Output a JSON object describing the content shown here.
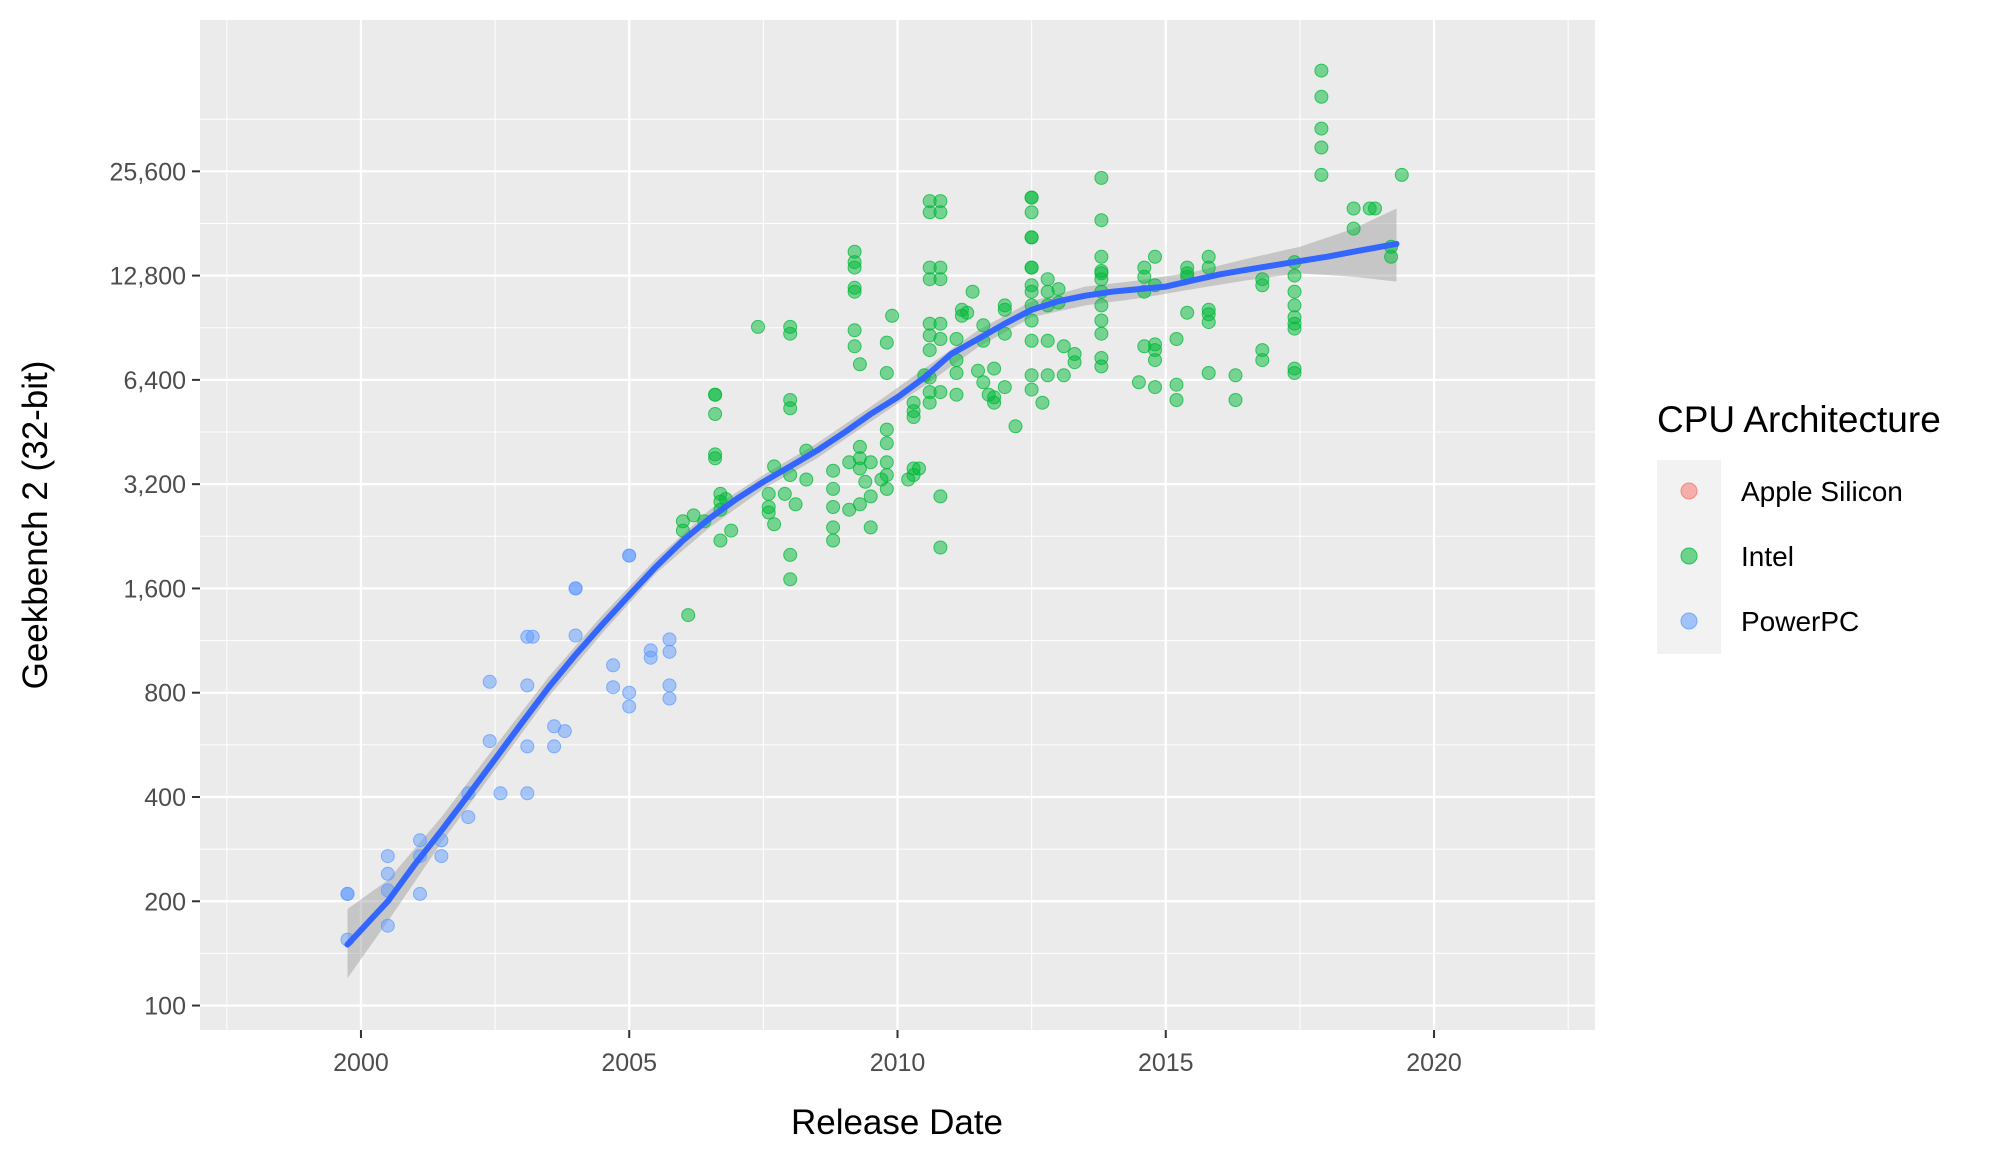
{
  "chart_data": {
    "type": "scatter",
    "title": "",
    "xlabel": "Release Date",
    "ylabel": "Geekbench 2 (32-bit)",
    "x_scale": "date",
    "y_scale": "log2",
    "xlim": [
      1997.0,
      2023.0
    ],
    "ylim": [
      85,
      70000
    ],
    "x_ticks": [
      2000,
      2005,
      2010,
      2015,
      2020
    ],
    "x_tick_labels": [
      "2000",
      "2005",
      "2010",
      "2015",
      "2020"
    ],
    "y_ticks": [
      100,
      200,
      400,
      800,
      1600,
      3200,
      6400,
      12800,
      25600
    ],
    "y_tick_labels": [
      "100",
      "200",
      "400",
      "800",
      "1,600",
      "3,200",
      "6,400",
      "12,800",
      "25,600"
    ],
    "grid": true,
    "legend": {
      "title": "CPU Architecture",
      "position": "right",
      "entries": [
        "Apple Silicon",
        "Intel",
        "PowerPC"
      ]
    },
    "colors": {
      "Apple Silicon": "#F8766D",
      "Intel": "#00BA38",
      "PowerPC": "#619CFF",
      "trend": "#3366FF",
      "ribbon": "#999999",
      "panel": "#EBEBEB",
      "grid": "#FFFFFF"
    },
    "series": [
      {
        "name": "Apple Silicon",
        "points": []
      },
      {
        "name": "PowerPC",
        "points": [
          [
            1999.75,
            210
          ],
          [
            1999.75,
            210
          ],
          [
            1999.75,
            155
          ],
          [
            2000.5,
            270
          ],
          [
            2000.5,
            240
          ],
          [
            2000.5,
            215
          ],
          [
            2000.5,
            170
          ],
          [
            2001.1,
            300
          ],
          [
            2001.1,
            270
          ],
          [
            2001.1,
            210
          ],
          [
            2001.5,
            300
          ],
          [
            2001.5,
            270
          ],
          [
            2002.0,
            410
          ],
          [
            2002.0,
            350
          ],
          [
            2002.4,
            580
          ],
          [
            2002.4,
            860
          ],
          [
            2002.6,
            410
          ],
          [
            2003.1,
            1160
          ],
          [
            2003.2,
            1160
          ],
          [
            2003.1,
            840
          ],
          [
            2003.1,
            560
          ],
          [
            2003.1,
            410
          ],
          [
            2003.6,
            640
          ],
          [
            2003.6,
            560
          ],
          [
            2003.8,
            620
          ],
          [
            2004.0,
            1600
          ],
          [
            2004.0,
            1600
          ],
          [
            2004.0,
            1170
          ],
          [
            2004.7,
            960
          ],
          [
            2004.7,
            830
          ],
          [
            2005.0,
            1990
          ],
          [
            2005.0,
            1990
          ],
          [
            2005.0,
            800
          ],
          [
            2005.0,
            730
          ],
          [
            2005.4,
            1060
          ],
          [
            2005.4,
            1010
          ],
          [
            2005.75,
            1140
          ],
          [
            2005.75,
            1050
          ],
          [
            2005.75,
            840
          ],
          [
            2005.75,
            770
          ]
        ]
      },
      {
        "name": "Intel",
        "points": [
          [
            2006.1,
            1340
          ],
          [
            2006.0,
            2500
          ],
          [
            2006.0,
            2350
          ],
          [
            2006.2,
            2600
          ],
          [
            2006.4,
            2500
          ],
          [
            2006.6,
            5800
          ],
          [
            2006.6,
            5800
          ],
          [
            2006.6,
            5100
          ],
          [
            2006.6,
            3900
          ],
          [
            2006.6,
            3800
          ],
          [
            2006.7,
            3000
          ],
          [
            2006.7,
            2850
          ],
          [
            2006.7,
            2700
          ],
          [
            2006.7,
            2200
          ],
          [
            2006.8,
            2900
          ],
          [
            2006.9,
            2350
          ],
          [
            2007.4,
            9100
          ],
          [
            2007.6,
            3000
          ],
          [
            2007.6,
            2750
          ],
          [
            2007.6,
            2650
          ],
          [
            2007.7,
            2450
          ],
          [
            2007.7,
            3600
          ],
          [
            2007.9,
            3000
          ],
          [
            2008.0,
            9100
          ],
          [
            2008.0,
            8700
          ],
          [
            2008.0,
            5600
          ],
          [
            2008.0,
            5300
          ],
          [
            2008.0,
            3400
          ],
          [
            2008.0,
            2000
          ],
          [
            2008.0,
            1700
          ],
          [
            2008.1,
            2800
          ],
          [
            2008.3,
            4000
          ],
          [
            2008.3,
            3300
          ],
          [
            2008.8,
            3500
          ],
          [
            2008.8,
            3100
          ],
          [
            2008.8,
            2750
          ],
          [
            2008.8,
            2400
          ],
          [
            2008.8,
            2200
          ],
          [
            2009.1,
            3700
          ],
          [
            2009.1,
            2700
          ],
          [
            2009.2,
            15000
          ],
          [
            2009.2,
            14000
          ],
          [
            2009.2,
            13500
          ],
          [
            2009.2,
            11500
          ],
          [
            2009.2,
            11800
          ],
          [
            2009.2,
            8900
          ],
          [
            2009.2,
            8000
          ],
          [
            2009.3,
            7100
          ],
          [
            2009.3,
            2800
          ],
          [
            2009.3,
            4100
          ],
          [
            2009.3,
            3800
          ],
          [
            2009.3,
            3550
          ],
          [
            2009.4,
            3250
          ],
          [
            2009.5,
            3700
          ],
          [
            2009.5,
            2950
          ],
          [
            2009.5,
            2400
          ],
          [
            2009.7,
            3300
          ],
          [
            2009.8,
            4600
          ],
          [
            2009.8,
            4200
          ],
          [
            2009.8,
            3700
          ],
          [
            2009.8,
            3400
          ],
          [
            2009.8,
            3100
          ],
          [
            2009.8,
            8200
          ],
          [
            2009.8,
            6700
          ],
          [
            2009.9,
            9800
          ],
          [
            2010.2,
            3300
          ],
          [
            2010.3,
            3550
          ],
          [
            2010.3,
            3400
          ],
          [
            2010.4,
            3550
          ],
          [
            2010.3,
            5200
          ],
          [
            2010.3,
            5000
          ],
          [
            2010.3,
            5500
          ],
          [
            2010.5,
            6600
          ],
          [
            2010.6,
            21000
          ],
          [
            2010.6,
            19500
          ],
          [
            2010.6,
            13500
          ],
          [
            2010.6,
            12500
          ],
          [
            2010.6,
            9300
          ],
          [
            2010.6,
            8600
          ],
          [
            2010.6,
            7800
          ],
          [
            2010.6,
            6500
          ],
          [
            2010.6,
            5900
          ],
          [
            2010.6,
            5500
          ],
          [
            2010.8,
            21000
          ],
          [
            2010.8,
            19500
          ],
          [
            2010.8,
            13500
          ],
          [
            2010.8,
            12500
          ],
          [
            2010.8,
            9300
          ],
          [
            2010.8,
            8400
          ],
          [
            2010.8,
            5900
          ],
          [
            2010.8,
            2950
          ],
          [
            2010.8,
            2100
          ],
          [
            2011.1,
            5800
          ],
          [
            2011.1,
            6700
          ],
          [
            2011.1,
            7300
          ],
          [
            2011.1,
            8400
          ],
          [
            2011.2,
            9800
          ],
          [
            2011.2,
            10200
          ],
          [
            2011.3,
            10000
          ],
          [
            2011.4,
            11500
          ],
          [
            2011.5,
            6800
          ],
          [
            2011.6,
            9200
          ],
          [
            2011.6,
            8300
          ],
          [
            2011.6,
            6300
          ],
          [
            2011.7,
            5800
          ],
          [
            2011.8,
            5500
          ],
          [
            2011.8,
            5700
          ],
          [
            2011.8,
            6900
          ],
          [
            2012.0,
            10200
          ],
          [
            2012.0,
            10500
          ],
          [
            2012.0,
            8700
          ],
          [
            2012.0,
            6100
          ],
          [
            2012.2,
            4700
          ],
          [
            2012.5,
            21500
          ],
          [
            2012.5,
            21500
          ],
          [
            2012.5,
            19500
          ],
          [
            2012.5,
            16500
          ],
          [
            2012.5,
            16500
          ],
          [
            2012.5,
            13500
          ],
          [
            2012.5,
            13500
          ],
          [
            2012.5,
            12000
          ],
          [
            2012.5,
            11500
          ],
          [
            2012.5,
            10500
          ],
          [
            2012.5,
            9500
          ],
          [
            2012.5,
            8300
          ],
          [
            2012.5,
            6600
          ],
          [
            2012.5,
            6000
          ],
          [
            2012.7,
            5500
          ],
          [
            2012.8,
            12500
          ],
          [
            2012.8,
            11500
          ],
          [
            2012.8,
            10500
          ],
          [
            2012.8,
            8300
          ],
          [
            2012.8,
            6600
          ],
          [
            2013.0,
            11700
          ],
          [
            2013.0,
            10700
          ],
          [
            2013.1,
            8000
          ],
          [
            2013.1,
            6600
          ],
          [
            2013.3,
            7600
          ],
          [
            2013.3,
            7200
          ],
          [
            2013.8,
            24500
          ],
          [
            2013.8,
            18500
          ],
          [
            2013.8,
            14500
          ],
          [
            2013.8,
            13200
          ],
          [
            2013.8,
            12500
          ],
          [
            2013.8,
            11500
          ],
          [
            2013.8,
            10500
          ],
          [
            2013.8,
            9500
          ],
          [
            2013.8,
            8700
          ],
          [
            2013.8,
            7400
          ],
          [
            2013.8,
            7000
          ],
          [
            2013.8,
            13000
          ],
          [
            2014.5,
            6300
          ],
          [
            2014.6,
            13500
          ],
          [
            2014.6,
            12700
          ],
          [
            2014.6,
            11500
          ],
          [
            2014.6,
            8000
          ],
          [
            2014.8,
            14500
          ],
          [
            2014.8,
            12000
          ],
          [
            2014.8,
            8100
          ],
          [
            2014.8,
            7800
          ],
          [
            2014.8,
            7300
          ],
          [
            2014.8,
            6100
          ],
          [
            2015.2,
            8400
          ],
          [
            2015.2,
            6200
          ],
          [
            2015.2,
            5600
          ],
          [
            2015.4,
            13500
          ],
          [
            2015.4,
            12700
          ],
          [
            2015.4,
            10000
          ],
          [
            2015.4,
            13000
          ],
          [
            2015.8,
            14500
          ],
          [
            2015.8,
            13500
          ],
          [
            2015.8,
            10200
          ],
          [
            2015.8,
            9900
          ],
          [
            2015.8,
            9400
          ],
          [
            2015.8,
            6700
          ],
          [
            2016.3,
            6600
          ],
          [
            2016.3,
            5600
          ],
          [
            2016.8,
            12500
          ],
          [
            2016.8,
            12000
          ],
          [
            2016.8,
            7800
          ],
          [
            2016.8,
            7300
          ],
          [
            2017.4,
            14000
          ],
          [
            2017.4,
            12800
          ],
          [
            2017.4,
            11500
          ],
          [
            2017.4,
            10500
          ],
          [
            2017.4,
            9700
          ],
          [
            2017.4,
            9300
          ],
          [
            2017.4,
            9000
          ],
          [
            2017.4,
            6900
          ],
          [
            2017.4,
            6700
          ],
          [
            2017.9,
            50000
          ],
          [
            2017.9,
            42000
          ],
          [
            2017.9,
            34000
          ],
          [
            2017.9,
            30000
          ],
          [
            2017.9,
            25000
          ],
          [
            2018.5,
            20000
          ],
          [
            2018.5,
            17500
          ],
          [
            2018.8,
            20000
          ],
          [
            2018.9,
            20000
          ],
          [
            2019.2,
            15500
          ],
          [
            2019.2,
            14500
          ],
          [
            2019.4,
            25000
          ]
        ]
      }
    ],
    "trend": {
      "name": "smooth",
      "x": [
        1999.75,
        2000.5,
        2001.0,
        2001.5,
        2002.0,
        2002.5,
        2003.0,
        2003.5,
        2004.0,
        2004.5,
        2005.0,
        2005.5,
        2006.0,
        2006.5,
        2007.0,
        2007.5,
        2008.0,
        2008.5,
        2009.0,
        2009.5,
        2010.0,
        2010.5,
        2011.0,
        2011.5,
        2012.0,
        2012.5,
        2013.0,
        2013.5,
        2014.0,
        2014.5,
        2015.0,
        2015.5,
        2016.0,
        2016.5,
        2017.0,
        2017.5,
        2018.0,
        2018.5,
        2019.0,
        2019.3
      ],
      "y": [
        150,
        200,
        255,
        320,
        405,
        515,
        655,
        830,
        1030,
        1260,
        1530,
        1850,
        2200,
        2550,
        2900,
        3250,
        3600,
        4000,
        4500,
        5100,
        5700,
        6500,
        7600,
        8400,
        9300,
        10200,
        10800,
        11200,
        11500,
        11700,
        11900,
        12400,
        12900,
        13300,
        13700,
        14100,
        14500,
        15000,
        15500,
        15800
      ]
    },
    "ribbon": {
      "x": [
        1999.75,
        2000.5,
        2001.5,
        2002.5,
        2003.5,
        2004.5,
        2005.5,
        2006.5,
        2007.5,
        2008.5,
        2009.5,
        2010.5,
        2011.5,
        2012.5,
        2013.5,
        2014.5,
        2015.5,
        2016.5,
        2017.5,
        2018.5,
        2019.3
      ],
      "lower": [
        120,
        175,
        295,
        480,
        780,
        1190,
        1770,
        2400,
        3100,
        3800,
        4850,
        6150,
        7950,
        9700,
        10500,
        11000,
        11700,
        12400,
        13000,
        12700,
        12300
      ],
      "upper": [
        190,
        230,
        350,
        560,
        890,
        1340,
        1950,
        2700,
        3400,
        4200,
        5350,
        6900,
        8900,
        10800,
        11900,
        12400,
        13100,
        14300,
        15500,
        17500,
        20000
      ]
    }
  }
}
